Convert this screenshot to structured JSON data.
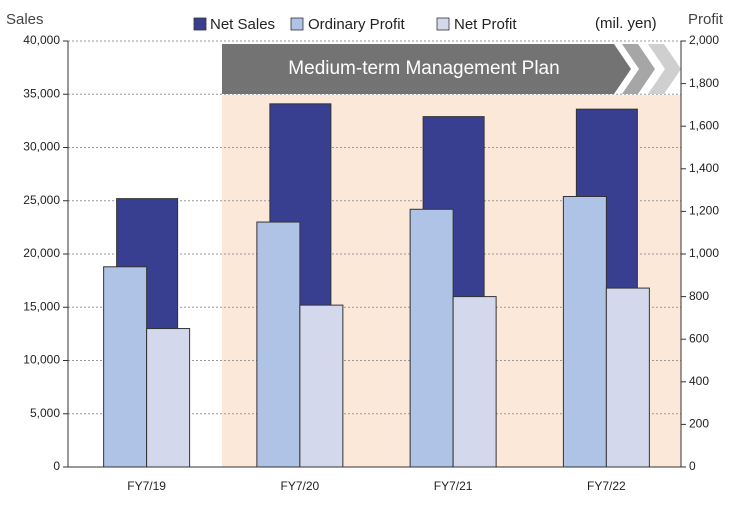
{
  "chart_data": {
    "type": "bar",
    "y_axis_label": "Sales",
    "y2_axis_label": "Profit",
    "unit_note": "(mil. yen)",
    "banner": "Medium-term Management Plan",
    "categories": [
      "FY7/19",
      "FY7/20",
      "FY7/21",
      "FY7/22"
    ],
    "series": [
      {
        "name": "Net Sales",
        "color": "#383f91",
        "values": [
          25200,
          34100,
          32900,
          33600
        ]
      },
      {
        "name": "Ordinary Profit",
        "color": "#aec3e6",
        "axis": "y2",
        "values": [
          940,
          1150,
          1210,
          1270
        ]
      },
      {
        "name": "Net Profit",
        "color": "#d4d8ec",
        "axis": "y2",
        "values": [
          650,
          760,
          800,
          840
        ]
      }
    ],
    "ylim": [
      0,
      40000
    ],
    "yticks": [
      0,
      {
        "value": 5000,
        "label": "5,000"
      },
      {
        "value": 10000,
        "label": "10,000"
      },
      {
        "value": 15000,
        "label": "15,000"
      },
      {
        "value": 20000,
        "label": "20,000"
      },
      {
        "value": 25000,
        "label": "25,000"
      },
      {
        "value": 30000,
        "label": "30,000"
      },
      {
        "value": 35000,
        "label": "35,000"
      },
      {
        "value": 40000,
        "label": "40,000"
      }
    ],
    "y2lim": [
      0,
      2000
    ],
    "y2ticks": [
      0,
      200,
      400,
      600,
      800,
      {
        "value": 1000,
        "label": "1,000"
      },
      {
        "value": 1200,
        "label": "1,200"
      },
      {
        "value": 1400,
        "label": "1,400"
      },
      {
        "value": 1600,
        "label": "1,600"
      },
      {
        "value": 1800,
        "label": "1,800"
      },
      {
        "value": 2000,
        "label": "2,000"
      }
    ],
    "grid": true
  }
}
